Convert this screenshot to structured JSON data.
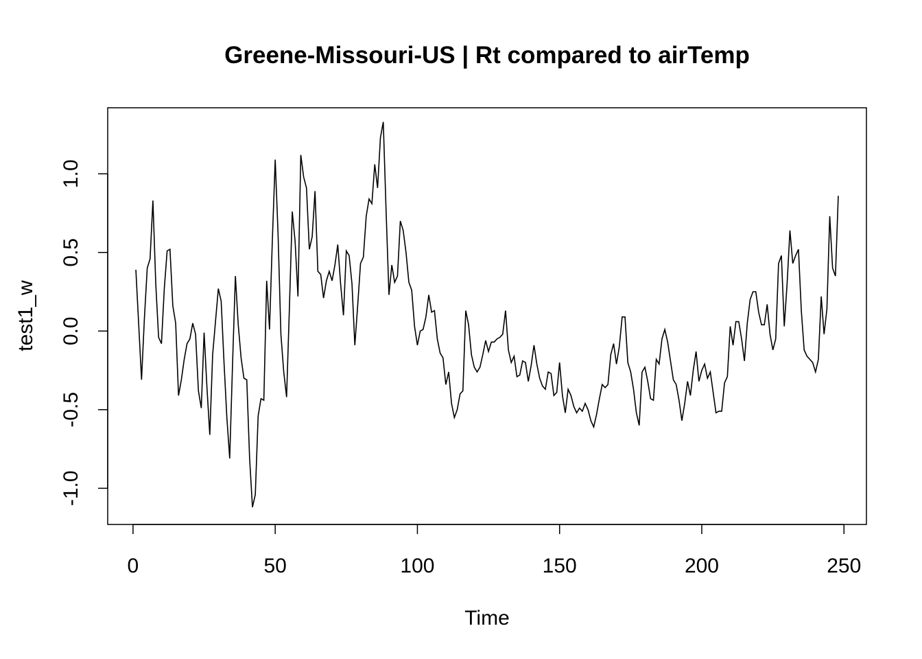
{
  "chart_data": {
    "type": "line",
    "title": "Greene-Missouri-US | Rt compared to airTemp",
    "xlabel": "Time",
    "ylabel": "test1_w",
    "xlim": [
      -8.9,
      257.9
    ],
    "ylim": [
      -1.23,
      1.42
    ],
    "x_ticks": [
      0,
      50,
      100,
      150,
      200,
      250
    ],
    "x_tick_labels": [
      "0",
      "50",
      "100",
      "150",
      "200",
      "250"
    ],
    "y_ticks": [
      -1.0,
      -0.5,
      0.0,
      0.5,
      1.0
    ],
    "y_tick_labels": [
      "-1.0",
      "-0.5",
      "0.0",
      "0.5",
      "1.0"
    ],
    "grid": false,
    "series": [
      {
        "color": "#000000",
        "x_start": 1,
        "x_step": 1,
        "values": [
          0.39,
          0.04,
          -0.31,
          0.08,
          0.4,
          0.46,
          0.83,
          0.3,
          -0.04,
          -0.08,
          0.27,
          0.51,
          0.52,
          0.16,
          0.05,
          -0.41,
          -0.31,
          -0.18,
          -0.08,
          -0.05,
          0.05,
          -0.02,
          -0.38,
          -0.49,
          -0.01,
          -0.36,
          -0.66,
          -0.15,
          0.06,
          0.27,
          0.19,
          -0.2,
          -0.55,
          -0.81,
          -0.21,
          0.35,
          0.04,
          -0.17,
          -0.3,
          -0.31,
          -0.81,
          -1.12,
          -1.04,
          -0.54,
          -0.43,
          -0.44,
          0.32,
          0.01,
          0.58,
          1.09,
          0.62,
          -0.02,
          -0.26,
          -0.42,
          0.15,
          0.76,
          0.57,
          0.22,
          1.12,
          0.98,
          0.91,
          0.52,
          0.6,
          0.89,
          0.38,
          0.36,
          0.21,
          0.32,
          0.38,
          0.32,
          0.42,
          0.55,
          0.3,
          0.1,
          0.51,
          0.48,
          0.3,
          -0.09,
          0.16,
          0.43,
          0.47,
          0.73,
          0.84,
          0.81,
          1.06,
          0.91,
          1.23,
          1.33,
          0.76,
          0.23,
          0.42,
          0.31,
          0.35,
          0.7,
          0.64,
          0.5,
          0.31,
          0.26,
          0.03,
          -0.09,
          0.0,
          0.01,
          0.09,
          0.23,
          0.12,
          0.13,
          -0.05,
          -0.14,
          -0.17,
          -0.34,
          -0.26,
          -0.46,
          -0.55,
          -0.5,
          -0.4,
          -0.38,
          0.13,
          0.04,
          -0.15,
          -0.23,
          -0.26,
          -0.23,
          -0.15,
          -0.06,
          -0.13,
          -0.07,
          -0.07,
          -0.05,
          -0.04,
          -0.02,
          0.13,
          -0.12,
          -0.2,
          -0.16,
          -0.29,
          -0.28,
          -0.19,
          -0.2,
          -0.32,
          -0.22,
          -0.09,
          -0.21,
          -0.3,
          -0.35,
          -0.37,
          -0.26,
          -0.27,
          -0.41,
          -0.39,
          -0.2,
          -0.41,
          -0.52,
          -0.37,
          -0.41,
          -0.48,
          -0.52,
          -0.49,
          -0.51,
          -0.46,
          -0.5,
          -0.57,
          -0.61,
          -0.53,
          -0.43,
          -0.34,
          -0.36,
          -0.34,
          -0.15,
          -0.08,
          -0.21,
          -0.1,
          0.09,
          0.09,
          -0.2,
          -0.26,
          -0.37,
          -0.52,
          -0.6,
          -0.26,
          -0.23,
          -0.32,
          -0.43,
          -0.44,
          -0.18,
          -0.21,
          -0.05,
          0.01,
          -0.07,
          -0.19,
          -0.31,
          -0.34,
          -0.44,
          -0.57,
          -0.46,
          -0.32,
          -0.41,
          -0.25,
          -0.13,
          -0.32,
          -0.25,
          -0.21,
          -0.3,
          -0.26,
          -0.39,
          -0.52,
          -0.51,
          -0.51,
          -0.33,
          -0.29,
          0.03,
          -0.09,
          0.06,
          0.06,
          -0.05,
          -0.19,
          0.05,
          0.2,
          0.25,
          0.25,
          0.12,
          0.04,
          0.04,
          0.17,
          -0.02,
          -0.12,
          -0.05,
          0.43,
          0.48,
          0.03,
          0.3,
          0.64,
          0.43,
          0.48,
          0.52,
          0.13,
          -0.12,
          -0.16,
          -0.18,
          -0.2,
          -0.26,
          -0.18,
          0.22,
          -0.02,
          0.14,
          0.73,
          0.4,
          0.35,
          0.86
        ]
      }
    ]
  }
}
